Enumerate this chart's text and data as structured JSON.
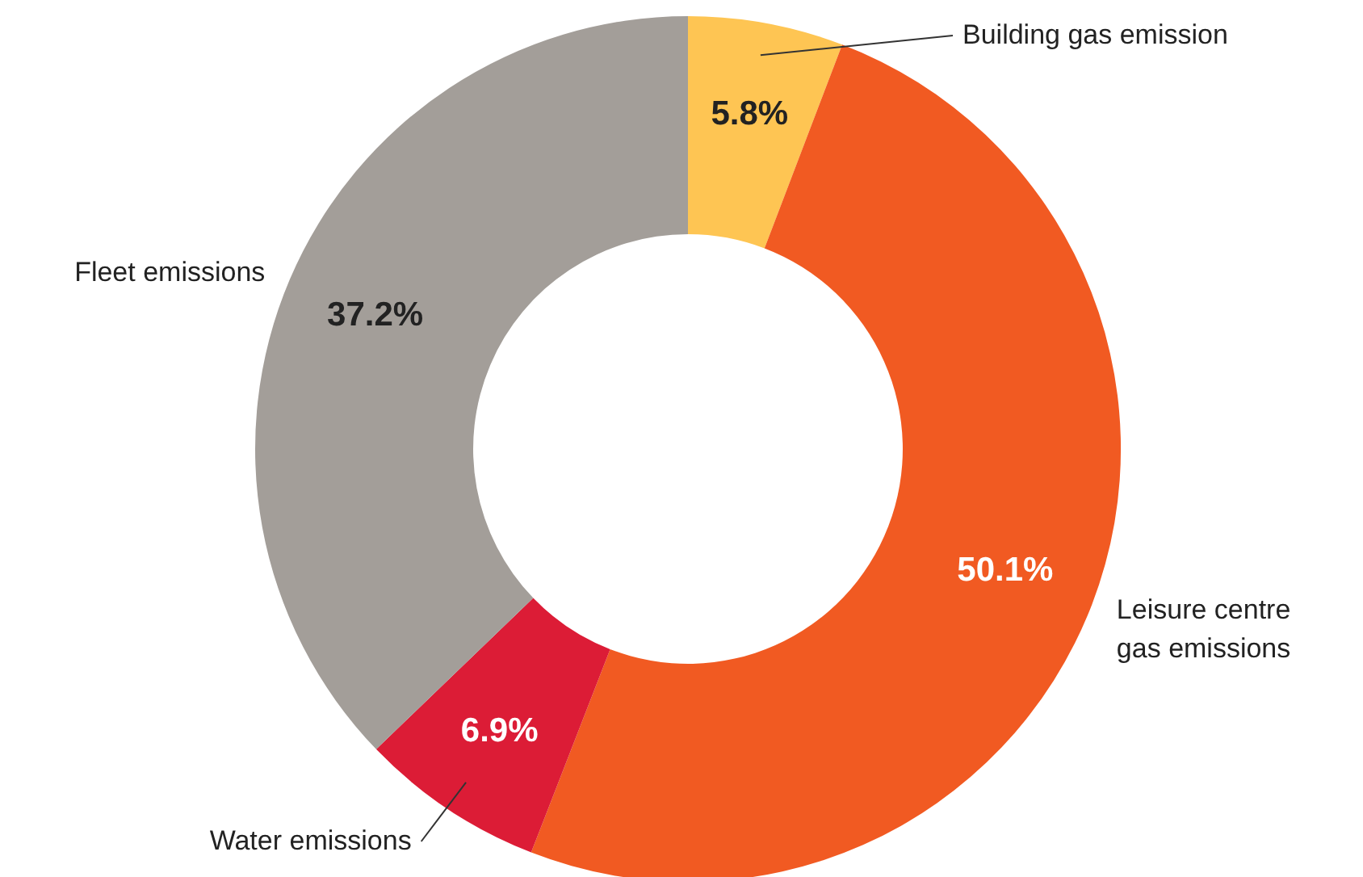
{
  "chart_data": {
    "type": "donut",
    "categories": [
      "Building gas emission",
      "Leisure centre gas emissions",
      "Water emissions",
      "Fleet emissions"
    ],
    "values": [
      5.8,
      50.1,
      6.9,
      37.2
    ],
    "colors": [
      "#fec553",
      "#f15a22",
      "#dc1c36",
      "#a39e99"
    ],
    "value_labels": [
      "5.8%",
      "50.1%",
      "6.9%",
      "37.2%"
    ]
  }
}
